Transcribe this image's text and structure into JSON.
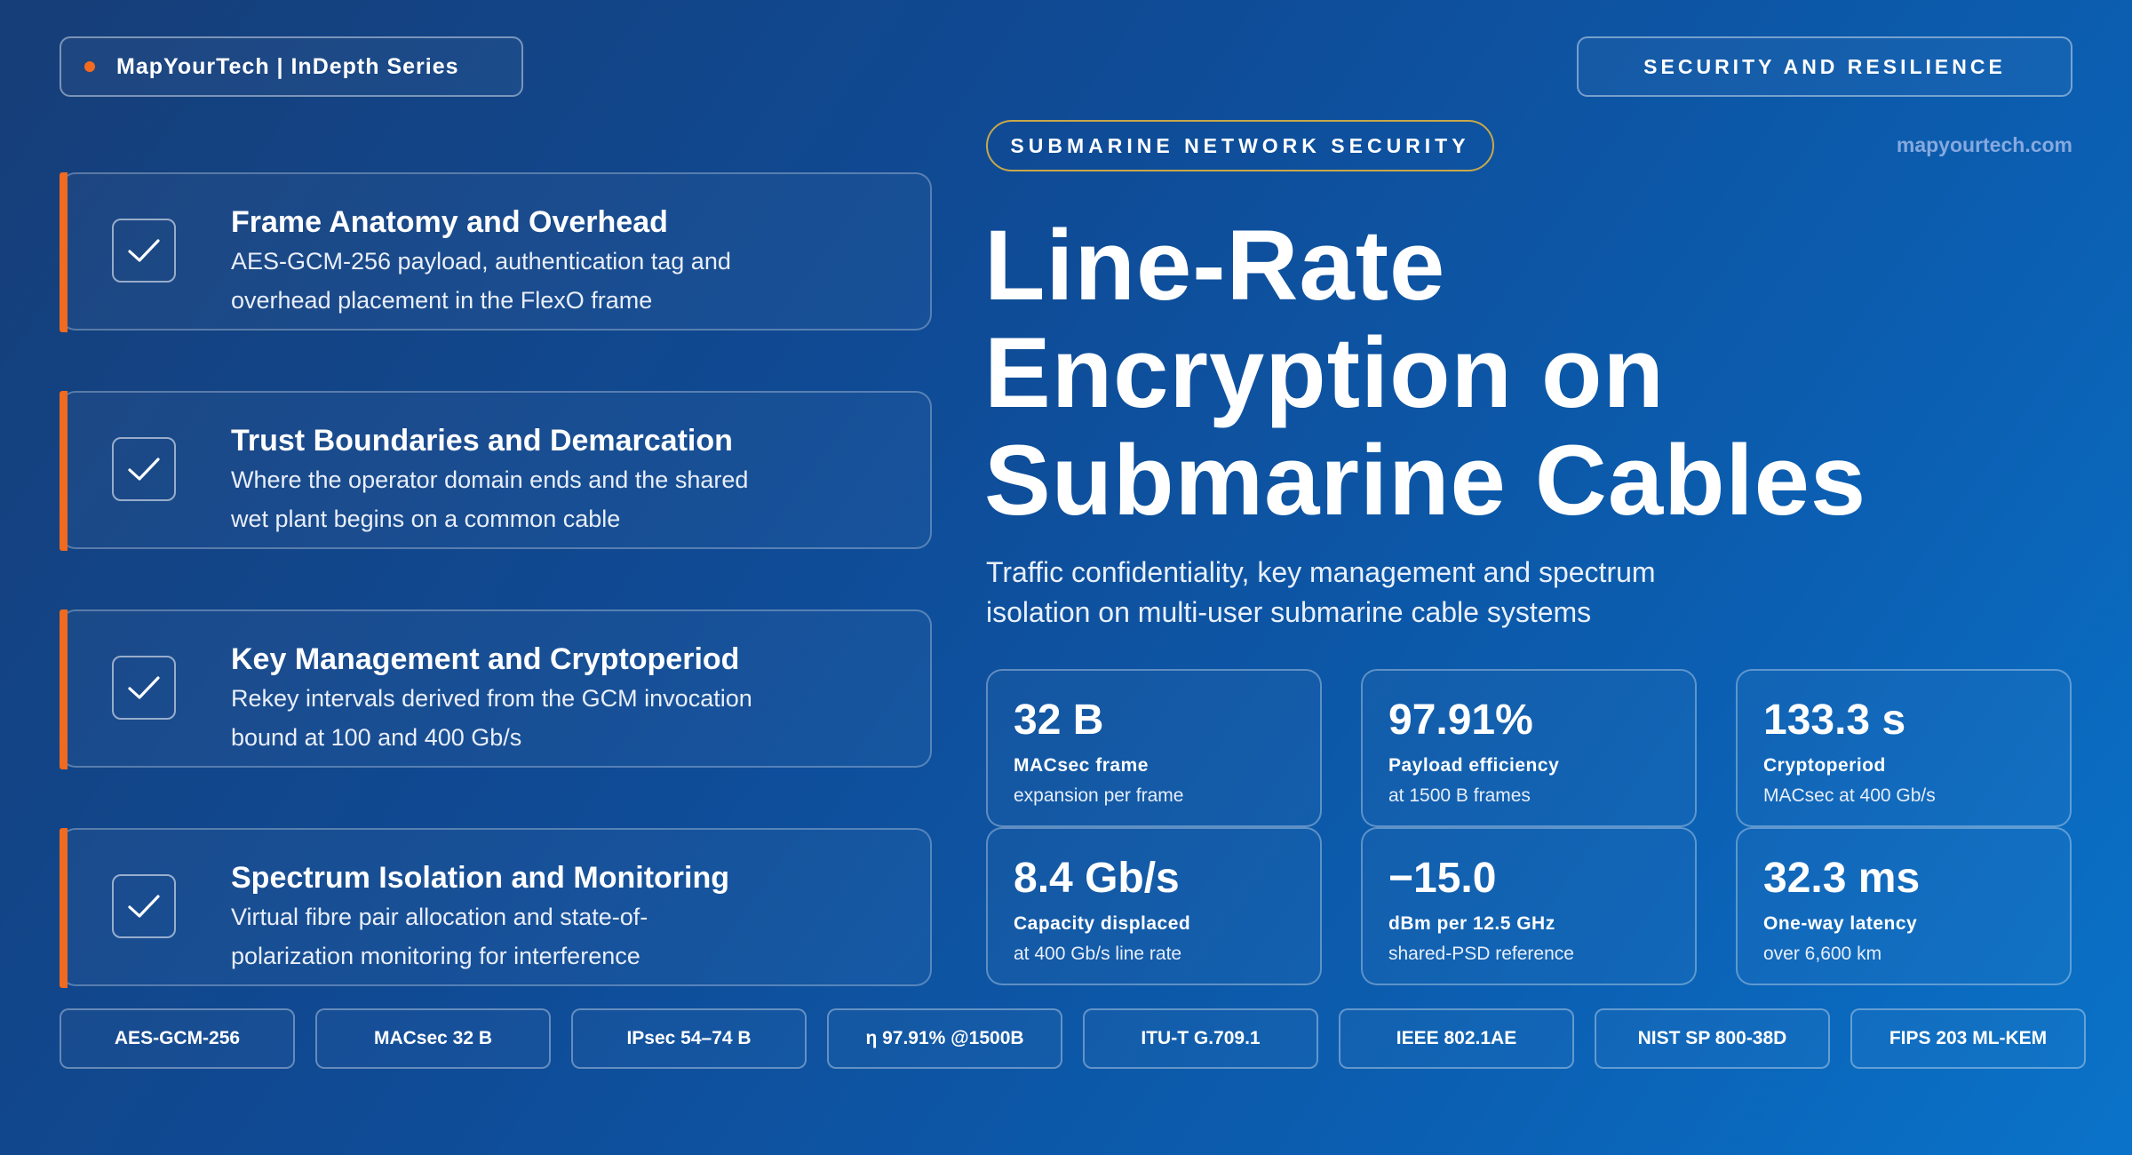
{
  "header": {
    "brand": "MapYourTech | InDepth Series",
    "section": "SECURITY AND RESILIENCE",
    "eyebrow": "SUBMARINE NETWORK SECURITY",
    "site": "mapyourtech.com"
  },
  "title_lines": [
    "Line-Rate",
    "Encryption on",
    "Submarine Cables"
  ],
  "subtitle": "Traffic confidentiality, key management and spectrum isolation on multi-user submarine cable systems",
  "topics": [
    {
      "title": "Frame Anatomy and Overhead",
      "desc": "AES-GCM-256 payload, authentication tag and overhead placement in the FlexO frame",
      "icon": "check-icon"
    },
    {
      "title": "Trust Boundaries and Demarcation",
      "desc": "Where the operator domain ends and the shared wet plant begins on a common cable",
      "icon": "check-icon"
    },
    {
      "title": "Key Management and Cryptoperiod",
      "desc": "Rekey intervals derived from the GCM invocation bound at 100 and 400 Gb/s",
      "icon": "check-icon"
    },
    {
      "title": "Spectrum Isolation and Monitoring",
      "desc": "Virtual fibre pair allocation and state-of-polarization monitoring for interference",
      "icon": "check-icon"
    }
  ],
  "stats": [
    {
      "value": "32 B",
      "label": "MACsec frame",
      "sub": "expansion per frame"
    },
    {
      "value": "97.91%",
      "label": "Payload efficiency",
      "sub": "at 1500 B frames"
    },
    {
      "value": "133.3 s",
      "label": "Cryptoperiod",
      "sub": "MACsec at 400 Gb/s"
    },
    {
      "value": "8.4 Gb/s",
      "label": "Capacity displaced",
      "sub": "at 400 Gb/s line rate"
    },
    {
      "value": "−15.0",
      "label": "dBm per 12.5 GHz",
      "sub": "shared-PSD reference"
    },
    {
      "value": "32.3 ms",
      "label": "One-way latency",
      "sub": "over 6,600 km"
    }
  ],
  "tags": [
    "AES-GCM-256",
    "MACsec 32 B",
    "IPsec 54–74 B",
    "η 97.91% @1500B",
    "ITU-T G.709.1",
    "IEEE 802.1AE",
    "NIST SP 800-38D",
    "FIPS 203 ML-KEM"
  ],
  "colors": {
    "accent": "#f06a20",
    "eyebrow_border": "#c9a84a",
    "site_text": "#86a9de",
    "bg_start": "#163e78",
    "bg_end": "#0a73c9"
  }
}
